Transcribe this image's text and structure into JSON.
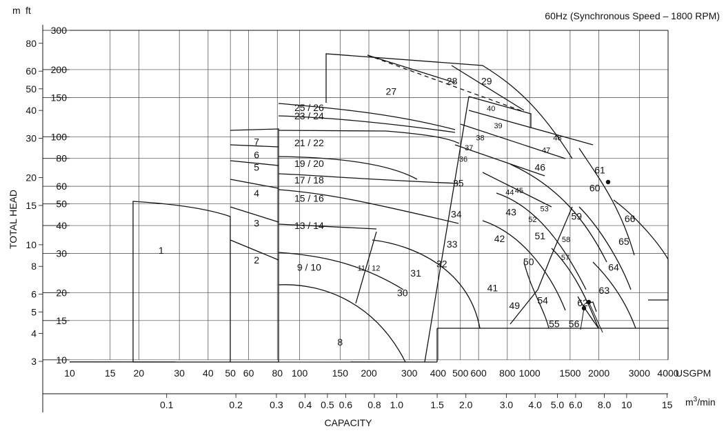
{
  "chart_data": {
    "type": "selection-chart",
    "title": "60Hz (Synchronous Speed – 1800 RPM)",
    "xlabel": "CAPACITY",
    "ylabel": "TOTAL HEAD",
    "x_scale": "log",
    "y_scale": "log",
    "x_unit_primary": "USGPM",
    "x_unit_secondary": "m3/min",
    "y_unit_left": "m",
    "y_unit_right": "ft",
    "xlim_usgpm": [
      10,
      4000
    ],
    "ylim_ft": [
      9.5,
      300
    ],
    "x_ticks_usgpm": [
      "10",
      "15",
      "20",
      "30",
      "40",
      "50",
      "60",
      "80",
      "100",
      "150",
      "200",
      "300",
      "400",
      "500",
      "600",
      "800",
      "1000",
      "1500",
      "2000",
      "3000",
      "4000"
    ],
    "x_ticks_m3min": [
      "0.1",
      "0.2",
      "0.3",
      "0.4",
      "0.5",
      "0.6",
      "0.8",
      "1.0",
      "1.5",
      "2.0",
      "3.0",
      "4.0",
      "5.0",
      "6.0",
      "8.0",
      "10",
      "15"
    ],
    "y_ticks_ft": [
      "10",
      "15",
      "20",
      "30",
      "40",
      "50",
      "60",
      "80",
      "100",
      "150",
      "200",
      "300"
    ],
    "y_ticks_m": [
      "3",
      "4",
      "5",
      "6",
      "8",
      "10",
      "15",
      "20",
      "30",
      "40",
      "50",
      "60",
      "80"
    ],
    "grid": true,
    "zones": [
      {
        "label": "1",
        "q_usgpm": 25,
        "h_ft": 31
      },
      {
        "label": "2",
        "q_usgpm": 65,
        "h_ft": 28
      },
      {
        "label": "3",
        "q_usgpm": 65,
        "h_ft": 41
      },
      {
        "label": "4",
        "q_usgpm": 65,
        "h_ft": 56
      },
      {
        "label": "5",
        "q_usgpm": 65,
        "h_ft": 73
      },
      {
        "label": "6",
        "q_usgpm": 65,
        "h_ft": 83
      },
      {
        "label": "7",
        "q_usgpm": 65,
        "h_ft": 95
      },
      {
        "label": "8",
        "q_usgpm": 150,
        "h_ft": 12
      },
      {
        "label": "9 / 10",
        "q_usgpm": 110,
        "h_ft": 26
      },
      {
        "label": "11 / 12",
        "q_usgpm": 200,
        "h_ft": 26
      },
      {
        "label": "13 / 14",
        "q_usgpm": 110,
        "h_ft": 40
      },
      {
        "label": "15 / 16",
        "q_usgpm": 110,
        "h_ft": 53
      },
      {
        "label": "17 / 18",
        "q_usgpm": 110,
        "h_ft": 64
      },
      {
        "label": "19 / 20",
        "q_usgpm": 110,
        "h_ft": 76
      },
      {
        "label": "21 / 22",
        "q_usgpm": 110,
        "h_ft": 94
      },
      {
        "label": "23 / 24",
        "q_usgpm": 110,
        "h_ft": 124
      },
      {
        "label": "25 / 26",
        "q_usgpm": 110,
        "h_ft": 135
      },
      {
        "label": "27",
        "q_usgpm": 250,
        "h_ft": 160
      },
      {
        "label": "28",
        "q_usgpm": 460,
        "h_ft": 178
      },
      {
        "label": "29",
        "q_usgpm": 650,
        "h_ft": 178
      },
      {
        "label": "30",
        "q_usgpm": 280,
        "h_ft": 20
      },
      {
        "label": "31",
        "q_usgpm": 320,
        "h_ft": 24.5
      },
      {
        "label": "32",
        "q_usgpm": 415,
        "h_ft": 27
      },
      {
        "label": "33",
        "q_usgpm": 460,
        "h_ft": 33
      },
      {
        "label": "34",
        "q_usgpm": 480,
        "h_ft": 45
      },
      {
        "label": "35",
        "q_usgpm": 490,
        "h_ft": 62
      },
      {
        "label": "36",
        "q_usgpm": 515,
        "h_ft": 80
      },
      {
        "label": "37",
        "q_usgpm": 545,
        "h_ft": 90
      },
      {
        "label": "38",
        "q_usgpm": 610,
        "h_ft": 100
      },
      {
        "label": "39",
        "q_usgpm": 730,
        "h_ft": 113
      },
      {
        "label": "40",
        "q_usgpm": 680,
        "h_ft": 135
      },
      {
        "label": "41",
        "q_usgpm": 690,
        "h_ft": 21
      },
      {
        "label": "42",
        "q_usgpm": 740,
        "h_ft": 35
      },
      {
        "label": "43",
        "q_usgpm": 830,
        "h_ft": 46
      },
      {
        "label": "44",
        "q_usgpm": 820,
        "h_ft": 57
      },
      {
        "label": "45",
        "q_usgpm": 900,
        "h_ft": 58
      },
      {
        "label": "46",
        "q_usgpm": 1110,
        "h_ft": 73
      },
      {
        "label": "47",
        "q_usgpm": 1180,
        "h_ft": 88
      },
      {
        "label": "48",
        "q_usgpm": 1320,
        "h_ft": 100
      },
      {
        "label": "49",
        "q_usgpm": 860,
        "h_ft": 17.5
      },
      {
        "label": "50",
        "q_usgpm": 990,
        "h_ft": 27.5
      },
      {
        "label": "51",
        "q_usgpm": 1110,
        "h_ft": 36
      },
      {
        "label": "52",
        "q_usgpm": 1030,
        "h_ft": 43
      },
      {
        "label": "53",
        "q_usgpm": 1160,
        "h_ft": 48
      },
      {
        "label": "54",
        "q_usgpm": 1140,
        "h_ft": 18.5
      },
      {
        "label": "55",
        "q_usgpm": 1280,
        "h_ft": 14.5
      },
      {
        "label": "56",
        "q_usgpm": 1560,
        "h_ft": 14.5
      },
      {
        "label": "57",
        "q_usgpm": 1430,
        "h_ft": 29
      },
      {
        "label": "58",
        "q_usgpm": 1440,
        "h_ft": 35
      },
      {
        "label": "59",
        "q_usgpm": 1600,
        "h_ft": 44
      },
      {
        "label": "60",
        "q_usgpm": 1920,
        "h_ft": 59
      },
      {
        "label": "61",
        "q_usgpm": 2020,
        "h_ft": 71
      },
      {
        "label": "62",
        "q_usgpm": 1700,
        "h_ft": 18
      },
      {
        "label": "63",
        "q_usgpm": 2110,
        "h_ft": 20.5
      },
      {
        "label": "64",
        "q_usgpm": 2320,
        "h_ft": 26
      },
      {
        "label": "65",
        "q_usgpm": 2570,
        "h_ft": 34
      },
      {
        "label": "66",
        "q_usgpm": 2730,
        "h_ft": 43
      }
    ]
  }
}
